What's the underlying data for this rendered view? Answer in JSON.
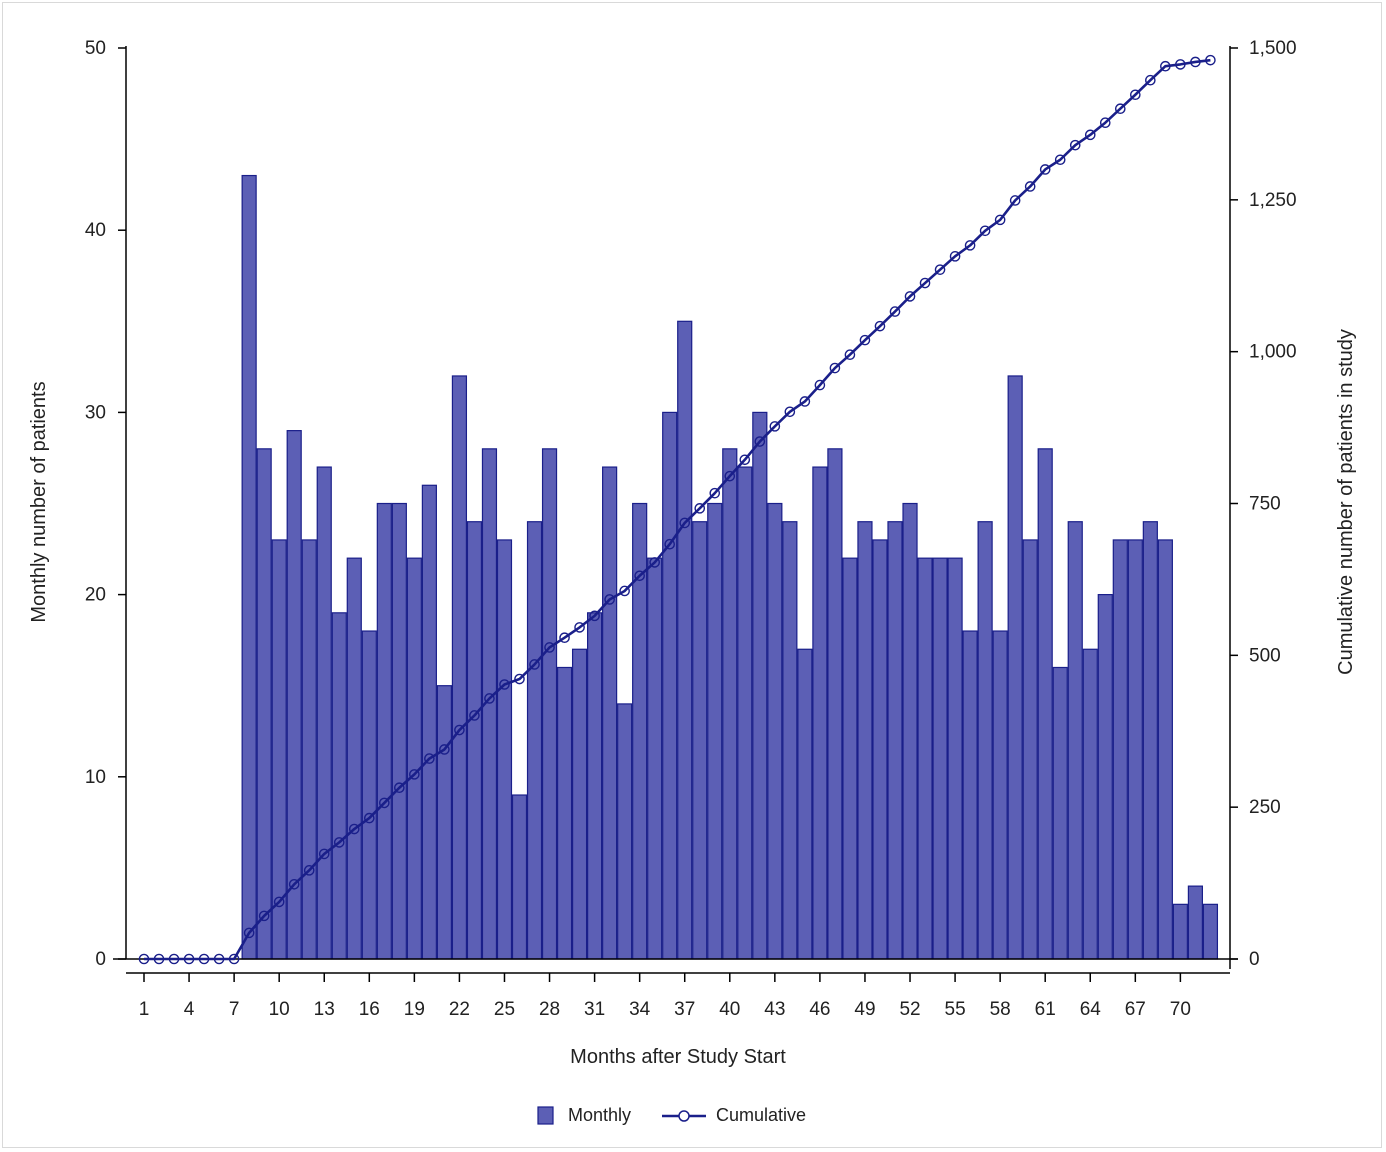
{
  "chart_data": {
    "type": "bar",
    "xlabel": "Months after Study Start",
    "ylabel": "Monthly number of patients",
    "y2label": "Cumulative number of patients in study",
    "x": [
      1,
      2,
      3,
      4,
      5,
      6,
      7,
      8,
      9,
      10,
      11,
      12,
      13,
      14,
      15,
      16,
      17,
      18,
      19,
      20,
      21,
      22,
      23,
      24,
      25,
      26,
      27,
      28,
      29,
      30,
      31,
      32,
      33,
      34,
      35,
      36,
      37,
      38,
      39,
      40,
      41,
      42,
      43,
      44,
      45,
      46,
      47,
      48,
      49,
      50,
      51,
      52,
      53,
      54,
      55,
      56,
      57,
      58,
      59,
      60,
      61,
      62,
      63,
      64,
      65,
      66,
      67,
      68,
      69,
      70,
      71,
      72
    ],
    "x_tick_labels": [
      "1",
      "4",
      "7",
      "10",
      "13",
      "16",
      "19",
      "22",
      "25",
      "28",
      "31",
      "34",
      "37",
      "40",
      "43",
      "46",
      "49",
      "52",
      "55",
      "58",
      "61",
      "64",
      "67",
      "70"
    ],
    "ylim": [
      0,
      50
    ],
    "y_ticks": [
      0,
      10,
      20,
      30,
      40,
      50
    ],
    "y_tick_labels": [
      "0",
      "10",
      "20",
      "30",
      "40",
      "50"
    ],
    "y2lim": [
      0,
      1500
    ],
    "y2_ticks": [
      0,
      250,
      500,
      750,
      1000,
      1250,
      1500
    ],
    "y2_tick_labels": [
      "0",
      "250",
      "500",
      "750",
      "1,000",
      "1,250",
      "1,500"
    ],
    "legend_position": "bottom",
    "grid": false,
    "series": [
      {
        "name": "Monthly",
        "kind": "bar",
        "axis": "left",
        "color": "#5c5fb5",
        "edge_color": "#1a1f8a",
        "values": [
          0,
          0,
          0,
          0,
          0,
          0,
          0,
          43,
          28,
          23,
          29,
          23,
          27,
          19,
          22,
          18,
          25,
          25,
          22,
          26,
          15,
          32,
          24,
          28,
          23,
          9,
          24,
          28,
          16,
          17,
          19,
          27,
          14,
          25,
          22,
          30,
          35,
          24,
          25,
          28,
          27,
          30,
          25,
          24,
          17,
          27,
          28,
          22,
          24,
          23,
          24,
          25,
          22,
          22,
          22,
          18,
          24,
          18,
          32,
          23,
          28,
          16,
          24,
          17,
          20,
          23,
          23,
          24,
          23,
          3,
          4,
          3
        ]
      },
      {
        "name": "Cumulative",
        "kind": "line",
        "axis": "right",
        "color": "#1a1f8a",
        "marker": "circle",
        "values": [
          0,
          0,
          0,
          0,
          0,
          0,
          0,
          43,
          71,
          94,
          123,
          146,
          173,
          192,
          214,
          232,
          257,
          282,
          304,
          330,
          345,
          377,
          401,
          429,
          452,
          461,
          485,
          513,
          529,
          546,
          565,
          592,
          606,
          631,
          653,
          683,
          718,
          742,
          767,
          795,
          822,
          852,
          877,
          901,
          918,
          945,
          973,
          995,
          1019,
          1042,
          1066,
          1091,
          1113,
          1135,
          1157,
          1175,
          1199,
          1217,
          1249,
          1272,
          1300,
          1316,
          1340,
          1357,
          1377,
          1400,
          1423,
          1447,
          1470,
          1473,
          1477,
          1480
        ]
      }
    ]
  }
}
